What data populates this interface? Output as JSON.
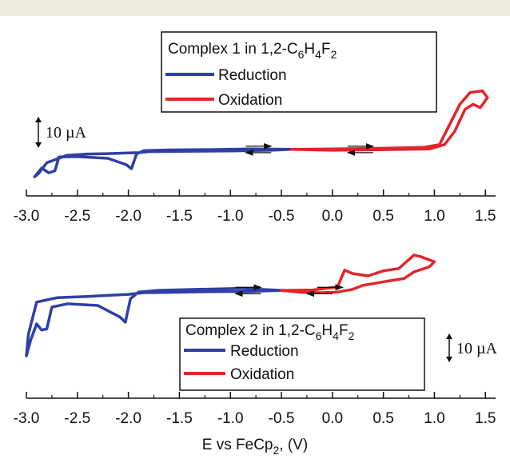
{
  "chart_data": [
    {
      "type": "line",
      "panel": "top",
      "legend_title": {
        "prefix": "Complex 1 in 1,2-C",
        "sub1": "6",
        "mid": "H",
        "sub2": "4",
        "end": "F",
        "sub3": "2"
      },
      "legend_placement": "top-center",
      "scale_bar_label": "10 µA",
      "x_ticks": [
        "-3.0",
        "-2.5",
        "-2.0",
        "-1.5",
        "-1.0",
        "-0.5",
        "0.0",
        "0.5",
        "1.0",
        "1.5"
      ],
      "xlim": [
        -3.0,
        1.6
      ],
      "series": [
        {
          "name": "Reduction",
          "color": "#2e3fa6",
          "closed": true,
          "points": [
            [
              -0.4,
              4.6
            ],
            [
              -0.8,
              4.7
            ],
            [
              -1.2,
              4.5
            ],
            [
              -1.6,
              4.4
            ],
            [
              -1.85,
              4.2
            ],
            [
              -1.92,
              3.2
            ],
            [
              -1.97,
              -1.2
            ],
            [
              -2.02,
              0.0
            ],
            [
              -2.2,
              1.9
            ],
            [
              -2.5,
              2.4
            ],
            [
              -2.68,
              2.3
            ],
            [
              -2.72,
              -1.8
            ],
            [
              -2.78,
              -2.4
            ],
            [
              -2.85,
              -1.0
            ],
            [
              -2.92,
              -3.6
            ],
            [
              -2.88,
              -2.6
            ],
            [
              -2.8,
              0.6
            ],
            [
              -2.6,
              2.8
            ],
            [
              -2.4,
              3.2
            ],
            [
              -2.2,
              3.3
            ],
            [
              -2.0,
              3.5
            ],
            [
              -1.9,
              3.6
            ],
            [
              -1.8,
              3.9
            ],
            [
              -1.5,
              4.0
            ],
            [
              -1.0,
              4.1
            ],
            [
              -0.6,
              4.3
            ],
            [
              -0.4,
              4.6
            ]
          ]
        },
        {
          "name": "Oxidation",
          "color": "#e0262b",
          "closed": true,
          "points": [
            [
              -0.4,
              4.6
            ],
            [
              0.0,
              4.3
            ],
            [
              0.5,
              4.5
            ],
            [
              0.95,
              4.7
            ],
            [
              1.1,
              6.0
            ],
            [
              1.2,
              10.0
            ],
            [
              1.3,
              16.5
            ],
            [
              1.38,
              18.0
            ],
            [
              1.45,
              17.0
            ],
            [
              1.52,
              20.0
            ],
            [
              1.47,
              22.0
            ],
            [
              1.35,
              21.5
            ],
            [
              1.25,
              18.0
            ],
            [
              1.15,
              12.0
            ],
            [
              1.05,
              6.0
            ],
            [
              0.9,
              5.2
            ],
            [
              0.5,
              4.9
            ],
            [
              0.0,
              4.7
            ],
            [
              -0.4,
              4.6
            ]
          ]
        }
      ],
      "arrows": [
        {
          "direction": "right",
          "x": [
            -0.85,
            -0.6
          ],
          "y": 5.5
        },
        {
          "direction": "left",
          "x": [
            -0.6,
            -0.85
          ],
          "y": 3.6
        },
        {
          "direction": "right",
          "x": [
            0.15,
            0.4
          ],
          "y": 5.5
        },
        {
          "direction": "left",
          "x": [
            0.4,
            0.15
          ],
          "y": 3.6
        }
      ]
    },
    {
      "type": "line",
      "panel": "bottom",
      "legend_title": {
        "prefix": "Complex 2 in 1,2-C",
        "sub1": "6",
        "mid": "H",
        "sub2": "4",
        "end": "F",
        "sub3": "2"
      },
      "legend_placement": "bottom-center",
      "scale_bar_label": "10 µA",
      "x_ticks": [
        "-3.0",
        "-2.5",
        "-2.0",
        "-1.5",
        "-1.0",
        "-0.5",
        "0.0",
        "0.5",
        "1.0",
        "1.5"
      ],
      "xlim": [
        -3.0,
        1.6
      ],
      "xlabel": {
        "text": "E vs FeCp",
        "sub": "2",
        "end": ", (V)"
      },
      "series": [
        {
          "name": "Reduction",
          "color": "#2e3fa6",
          "closed": true,
          "points": [
            [
              -0.5,
              1.0
            ],
            [
              -0.9,
              1.6
            ],
            [
              -1.3,
              1.3
            ],
            [
              -1.7,
              1.0
            ],
            [
              -1.9,
              0.5
            ],
            [
              -1.98,
              -1.5
            ],
            [
              -2.03,
              -8.5
            ],
            [
              -2.08,
              -7.0
            ],
            [
              -2.3,
              -3.5
            ],
            [
              -2.6,
              -3.0
            ],
            [
              -2.75,
              -4.0
            ],
            [
              -2.8,
              -10.5
            ],
            [
              -2.85,
              -10.8
            ],
            [
              -2.9,
              -9.0
            ],
            [
              -2.96,
              -14.0
            ],
            [
              -3.0,
              -18.5
            ],
            [
              -2.98,
              -12.0
            ],
            [
              -2.9,
              -2.5
            ],
            [
              -2.7,
              -1.2
            ],
            [
              -2.4,
              -0.8
            ],
            [
              -2.2,
              -0.5
            ],
            [
              -2.0,
              -0.2
            ],
            [
              -1.85,
              0.3
            ],
            [
              -1.6,
              0.4
            ],
            [
              -1.2,
              0.6
            ],
            [
              -0.8,
              0.7
            ],
            [
              -0.5,
              1.0
            ]
          ]
        },
        {
          "name": "Oxidation",
          "color": "#e0262b",
          "closed": true,
          "points": [
            [
              -0.5,
              1.0
            ],
            [
              -0.2,
              1.1
            ],
            [
              0.05,
              2.0
            ],
            [
              0.12,
              7.0
            ],
            [
              0.2,
              6.0
            ],
            [
              0.35,
              5.3
            ],
            [
              0.5,
              6.8
            ],
            [
              0.65,
              7.5
            ],
            [
              0.8,
              11.5
            ],
            [
              0.87,
              11.0
            ],
            [
              1.0,
              9.5
            ],
            [
              0.95,
              8.0
            ],
            [
              0.8,
              6.5
            ],
            [
              0.7,
              4.5
            ],
            [
              0.55,
              3.8
            ],
            [
              0.4,
              3.0
            ],
            [
              0.3,
              2.5
            ],
            [
              0.2,
              1.3
            ],
            [
              0.05,
              0.5
            ],
            [
              -0.1,
              0.3
            ],
            [
              -0.3,
              0.4
            ],
            [
              -0.5,
              1.0
            ]
          ]
        }
      ],
      "arrows": [
        {
          "direction": "right",
          "x": [
            -0.95,
            -0.7
          ],
          "y": 1.9
        },
        {
          "direction": "left",
          "x": [
            -0.7,
            -0.95
          ],
          "y": 0.0
        },
        {
          "direction": "right",
          "x": [
            -0.15,
            0.1
          ],
          "y": 1.9
        },
        {
          "direction": "left",
          "x": [
            0.0,
            -0.25
          ],
          "y": 0.0
        }
      ]
    }
  ]
}
